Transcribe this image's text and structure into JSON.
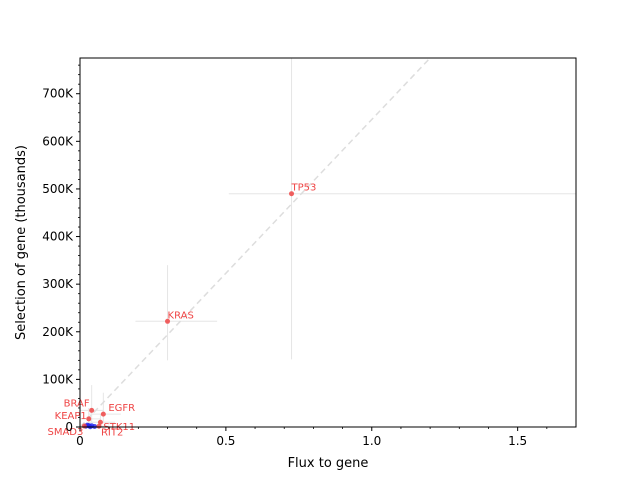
{
  "chart_data": {
    "type": "scatter",
    "title": "",
    "xlabel": "Flux to gene",
    "ylabel": "Selection of gene (thousands)",
    "xlim": [
      0,
      1.7
    ],
    "ylim": [
      0,
      775000
    ],
    "x_ticks": [
      {
        "value": 0,
        "label": "0"
      },
      {
        "value": 0.5,
        "label": "0.5"
      },
      {
        "value": 1.0,
        "label": "1.0"
      },
      {
        "value": 1.5,
        "label": "1.5"
      }
    ],
    "y_ticks": [
      {
        "value": 0,
        "label": "0"
      },
      {
        "value": 100000,
        "label": "100K"
      },
      {
        "value": 200000,
        "label": "200K"
      },
      {
        "value": 300000,
        "label": "300K"
      },
      {
        "value": 400000,
        "label": "400K"
      },
      {
        "value": 500000,
        "label": "500K"
      },
      {
        "value": 600000,
        "label": "600K"
      },
      {
        "value": 700000,
        "label": "700K"
      }
    ],
    "grid": false,
    "reference_line": {
      "style": "dashed",
      "color": "#dddddd",
      "points": [
        [
          0,
          0
        ],
        [
          1.2,
          775000
        ]
      ]
    },
    "labeled_points": [
      {
        "label": "TP53",
        "x": 0.725,
        "y": 490000,
        "x_err": [
          0.51,
          1.7
        ],
        "y_err": [
          142000,
          775000
        ]
      },
      {
        "label": "KRAS",
        "x": 0.3,
        "y": 222000,
        "x_err": [
          0.19,
          0.47
        ],
        "y_err": [
          140000,
          340000
        ]
      },
      {
        "label": "EGFR",
        "x": 0.08,
        "y": 27000,
        "x_err": [
          0.03,
          0.14
        ],
        "y_err": [
          8000,
          72000
        ]
      },
      {
        "label": "BRAF",
        "x": 0.04,
        "y": 35000,
        "x_err": [
          0.0,
          0.08
        ],
        "y_err": [
          10000,
          88000
        ]
      },
      {
        "label": "KEAP1",
        "x": 0.03,
        "y": 17000,
        "x_err": [
          0.0,
          0.07
        ],
        "y_err": [
          4000,
          40000
        ]
      },
      {
        "label": "STK11",
        "x": 0.07,
        "y": 10000,
        "x_err": [
          0.03,
          0.12
        ],
        "y_err": [
          2000,
          28000
        ]
      },
      {
        "label": "SMAD3",
        "x": 0.015,
        "y": 2000,
        "x_err": [
          0.0,
          0.04
        ],
        "y_err": [
          0,
          10000
        ]
      },
      {
        "label": "RIT2",
        "x": 0.065,
        "y": 1500,
        "x_err": [
          0.03,
          0.1
        ],
        "y_err": [
          0,
          9000
        ]
      }
    ],
    "unlabeled_points": [
      {
        "x": 0.02,
        "y": 1500
      },
      {
        "x": 0.03,
        "y": 3000
      },
      {
        "x": 0.04,
        "y": 2500
      },
      {
        "x": 0.05,
        "y": 1000
      },
      {
        "x": 0.025,
        "y": 4000
      },
      {
        "x": 0.035,
        "y": 500
      }
    ],
    "colors": {
      "labeled": "#ef4444",
      "unlabeled": "#2222ee",
      "errorbar": "#e6e6e6",
      "axis": "#000000"
    }
  }
}
